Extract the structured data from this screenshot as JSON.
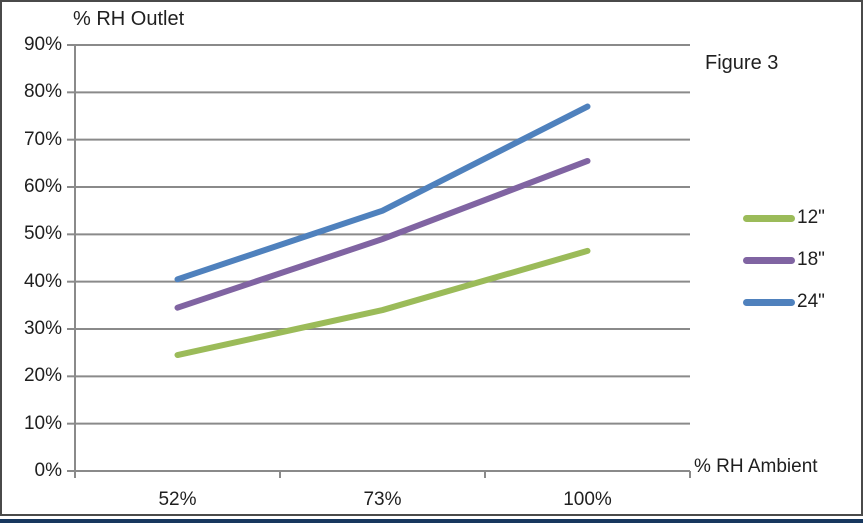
{
  "figure_label": "Figure 3",
  "chart_data": {
    "type": "line",
    "title": "% RH Outlet",
    "xlabel": "% RH Ambient",
    "categories": [
      "52%",
      "73%",
      "100%"
    ],
    "series": [
      {
        "name": "12\"",
        "values": [
          24.5,
          34,
          46.5
        ],
        "color": "#9BBB59"
      },
      {
        "name": "18\"",
        "values": [
          34.5,
          49,
          65.5
        ],
        "color": "#8064A2"
      },
      {
        "name": "24\"",
        "values": [
          40.5,
          55,
          77
        ],
        "color": "#4F81BD"
      }
    ],
    "y_ticks": [
      "90%",
      "80%",
      "70%",
      "60%",
      "50%",
      "40%",
      "30%",
      "20%",
      "10%",
      "0%"
    ],
    "ylim": [
      0,
      90
    ],
    "grid": true,
    "legend_position": "right",
    "colors": {
      "gridline": "#8a8a8a",
      "axis": "#8a8a8a",
      "text": "#1f1f1f",
      "frame_border": "#4a4a4a",
      "bottom_edge": "#17375E"
    }
  }
}
